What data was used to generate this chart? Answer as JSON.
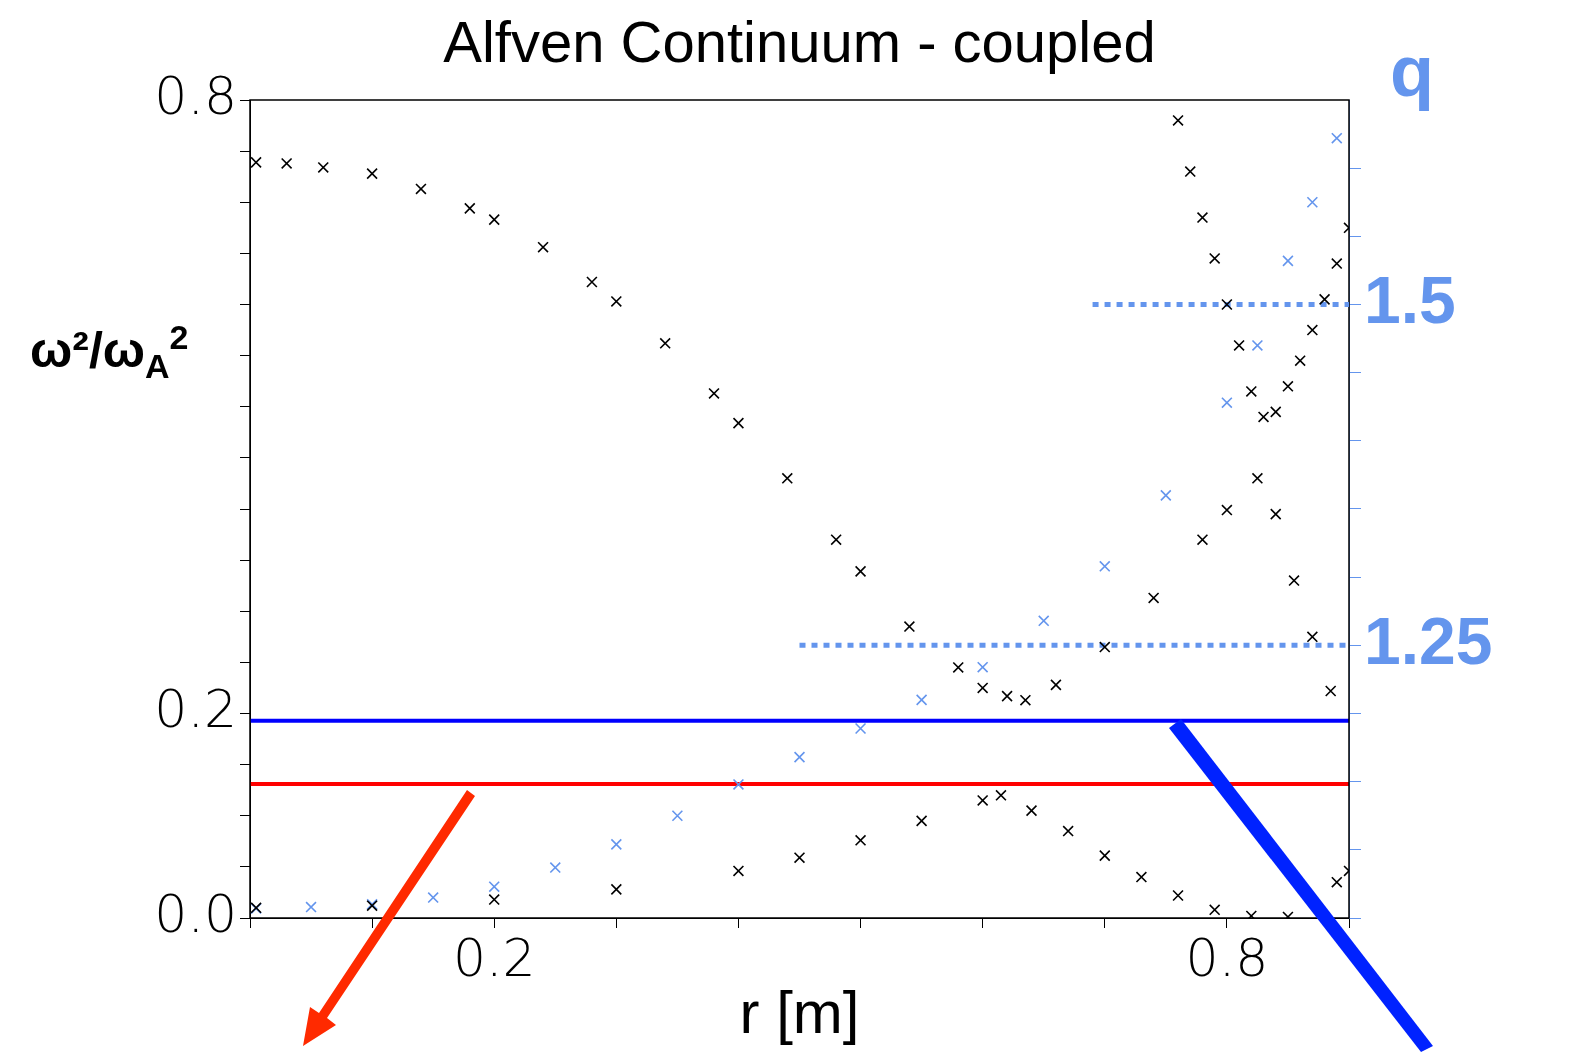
{
  "chart_data": {
    "type": "scatter",
    "title": "Alfven Continuum - coupled",
    "xlabel": "r [m]",
    "ylabel": "ω²/ω$_{A}$$^{2}$",
    "y2label": "q",
    "marker": "cross",
    "grid": false,
    "legend": false,
    "xlim": [
      0,
      0.9
    ],
    "xticks": [
      {
        "value": 0,
        "label": null
      },
      {
        "value": 0.1,
        "label": null
      },
      0.2,
      {
        "value": 0.3,
        "label": null
      },
      {
        "value": 0.4,
        "label": null
      },
      {
        "value": 0.5,
        "label": null
      },
      {
        "value": 0.6,
        "label": null
      },
      {
        "value": 0.7,
        "label": null
      },
      0.8,
      {
        "value": 0.9,
        "label": null
      }
    ],
    "ylim": [
      0,
      0.8
    ],
    "yticks": [
      {
        "value": 0,
        "label": "0.0"
      },
      {
        "value": 0.05,
        "label": null
      },
      {
        "value": 0.1,
        "label": null
      },
      {
        "value": 0.15,
        "label": null
      },
      0.2,
      {
        "value": 0.25,
        "label": null
      },
      {
        "value": 0.3,
        "label": null
      },
      {
        "value": 0.35,
        "label": null
      },
      {
        "value": 0.4,
        "label": null
      },
      {
        "value": 0.45,
        "label": null
      },
      {
        "value": 0.5,
        "label": null
      },
      {
        "value": 0.55,
        "label": null
      },
      {
        "value": 0.6,
        "label": null
      },
      {
        "value": 0.65,
        "label": null
      },
      {
        "value": 0.7,
        "label": null
      },
      {
        "value": 0.75,
        "label": null
      },
      0.8
    ],
    "y2lim": [
      1.05,
      1.65
    ],
    "y2ticks": [
      {
        "value": 1.05,
        "label": null
      },
      {
        "value": 1.1,
        "label": null
      },
      {
        "value": 1.15,
        "label": null
      },
      {
        "value": 1.2,
        "label": null
      },
      1.25,
      {
        "value": 1.3,
        "label": null
      },
      {
        "value": 1.35,
        "label": null
      },
      {
        "value": 1.4,
        "label": null
      },
      {
        "value": 1.45,
        "label": null
      },
      1.5,
      {
        "value": 1.55,
        "label": null
      },
      {
        "value": 1.6,
        "label": null
      }
    ],
    "ref_lines": [
      {
        "axis": "y",
        "value": 0.193,
        "color": "#0000ff"
      },
      {
        "axis": "y",
        "value": 0.131,
        "color": "#ff0000"
      }
    ],
    "series": [
      {
        "color": "#000000",
        "x": [
          0.005,
          0.03,
          0.06,
          0.1,
          0.14,
          0.18,
          0.2,
          0.24,
          0.28,
          0.3,
          0.34,
          0.38,
          0.4,
          0.44,
          0.48,
          0.5,
          0.54,
          0.58,
          0.6,
          0.62
        ],
        "values": [
          0.739,
          0.738,
          0.734,
          0.728,
          0.713,
          0.694,
          0.683,
          0.656,
          0.622,
          0.603,
          0.562,
          0.513,
          0.484,
          0.43,
          0.37,
          0.339,
          0.285,
          0.245,
          0.225,
          0.217
        ]
      },
      {
        "color": "#000000",
        "x": [
          0.635,
          0.66,
          0.7,
          0.74,
          0.78,
          0.8,
          0.825,
          0.84,
          0.855,
          0.87,
          0.885
        ],
        "values": [
          0.213,
          0.228,
          0.265,
          0.313,
          0.37,
          0.399,
          0.43,
          0.395,
          0.33,
          0.275,
          0.222
        ]
      },
      {
        "color": "#000000",
        "x": [
          0.76,
          0.77,
          0.78,
          0.79,
          0.8,
          0.81,
          0.82,
          0.83,
          0.84,
          0.85,
          0.86,
          0.87,
          0.88,
          0.89,
          0.9
        ],
        "values": [
          0.78,
          0.73,
          0.685,
          0.645,
          0.6,
          0.56,
          0.515,
          0.49,
          0.495,
          0.52,
          0.545,
          0.575,
          0.605,
          0.64,
          0.675
        ]
      },
      {
        "color": "#000000",
        "x": [
          0.005,
          0.1,
          0.2,
          0.3,
          0.4,
          0.45,
          0.5,
          0.55,
          0.6,
          0.615,
          0.64,
          0.67,
          0.7,
          0.73,
          0.76,
          0.79,
          0.82,
          0.85,
          0.87,
          0.89,
          0.9
        ],
        "values": [
          0.01,
          0.012,
          0.018,
          0.028,
          0.046,
          0.059,
          0.076,
          0.095,
          0.115,
          0.12,
          0.105,
          0.085,
          0.061,
          0.04,
          0.022,
          0.008,
          0.002,
          0.001,
          null,
          0.035,
          0.046
        ]
      },
      {
        "color": "#6495ed",
        "axis": "y2",
        "x": [
          0.005,
          0.05,
          0.1,
          0.15,
          0.2,
          0.25,
          0.3,
          0.35,
          0.4,
          0.45,
          0.5,
          0.55,
          0.6,
          0.65,
          0.7,
          0.75,
          0.8,
          0.825,
          0.85,
          0.87,
          0.89
        ],
        "values": [
          1.057,
          1.058,
          1.06,
          1.065,
          1.073,
          1.087,
          1.104,
          1.125,
          1.148,
          1.168,
          1.189,
          1.21,
          1.234,
          1.268,
          1.308,
          1.36,
          1.428,
          1.47,
          1.532,
          1.575,
          1.622
        ]
      },
      {
        "type": "line",
        "axis": "y2",
        "color": "#6495ed",
        "line_style": "dotted",
        "marker": "none",
        "x": [
          0.69,
          0.9
        ],
        "values": [
          1.5,
          1.5
        ]
      },
      {
        "type": "line",
        "axis": "y2",
        "color": "#6495ed",
        "line_style": "dotted",
        "marker": "none",
        "x": [
          0.45,
          0.9
        ],
        "values": [
          1.25,
          1.25
        ]
      }
    ]
  }
}
